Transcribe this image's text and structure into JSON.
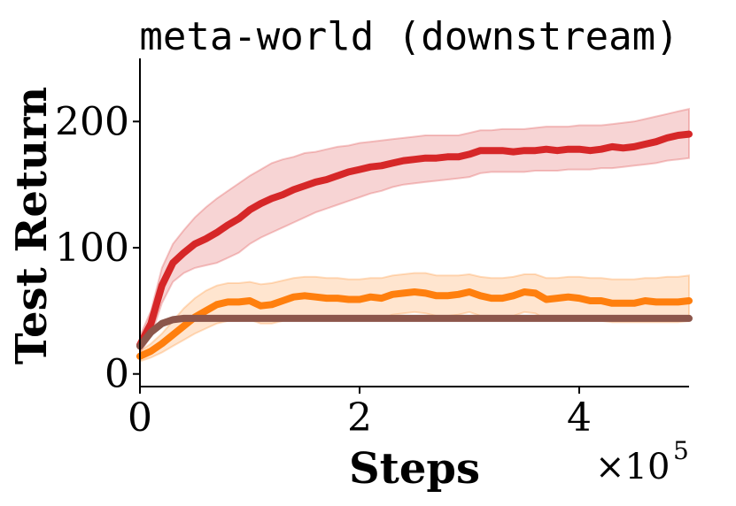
{
  "chart_data": {
    "type": "line",
    "title": "meta-world (downstream)",
    "xlabel": "Steps",
    "ylabel": "Test Return",
    "x_scale_text": "×10",
    "x_scale_exp": "5",
    "xlim": [
      0,
      500000
    ],
    "ylim": [
      -10,
      250
    ],
    "xticks": [
      0,
      200000,
      400000
    ],
    "xtick_labels": [
      "0",
      "2",
      "4"
    ],
    "yticks": [
      0,
      100,
      200
    ],
    "ytick_labels": [
      "0",
      "100",
      "200"
    ],
    "grid": false,
    "legend": "none",
    "series": [
      {
        "color": "#d62728",
        "x": [
          0,
          10000,
          20000,
          30000,
          40000,
          50000,
          60000,
          70000,
          80000,
          90000,
          100000,
          110000,
          120000,
          130000,
          140000,
          150000,
          160000,
          170000,
          180000,
          190000,
          200000,
          210000,
          220000,
          230000,
          240000,
          250000,
          260000,
          270000,
          280000,
          290000,
          300000,
          310000,
          320000,
          330000,
          340000,
          350000,
          360000,
          370000,
          380000,
          390000,
          400000,
          410000,
          420000,
          430000,
          440000,
          450000,
          460000,
          470000,
          480000,
          490000,
          500000
        ],
        "y": [
          23,
          40,
          70,
          88,
          96,
          103,
          107,
          112,
          118,
          123,
          130,
          135,
          139,
          142,
          146,
          149,
          152,
          154,
          157,
          160,
          162,
          164,
          165,
          167,
          169,
          170,
          171,
          171,
          172,
          172,
          174,
          177,
          177,
          177,
          176,
          177,
          177,
          178,
          177,
          178,
          178,
          177,
          178,
          180,
          179,
          180,
          182,
          184,
          187,
          189,
          190
        ],
        "upper": [
          30,
          50,
          84,
          103,
          114,
          124,
          132,
          139,
          145,
          151,
          157,
          162,
          167,
          170,
          172,
          175,
          176,
          178,
          180,
          181,
          183,
          184,
          185,
          186,
          187,
          188,
          189,
          189,
          189,
          189,
          191,
          193,
          193,
          194,
          194,
          194,
          195,
          196,
          196,
          196,
          197,
          197,
          197,
          198,
          199,
          200,
          202,
          204,
          206,
          208,
          210
        ],
        "lower": [
          17,
          30,
          56,
          73,
          80,
          84,
          86,
          88,
          92,
          96,
          103,
          108,
          112,
          116,
          120,
          124,
          128,
          131,
          134,
          137,
          140,
          143,
          145,
          148,
          150,
          151,
          152,
          153,
          154,
          155,
          156,
          159,
          160,
          160,
          160,
          160,
          161,
          161,
          161,
          162,
          162,
          162,
          163,
          163,
          164,
          165,
          166,
          167,
          169,
          170,
          171
        ]
      },
      {
        "color": "#ff7f0e",
        "x": [
          0,
          10000,
          20000,
          30000,
          40000,
          50000,
          60000,
          70000,
          80000,
          90000,
          100000,
          110000,
          120000,
          130000,
          140000,
          150000,
          160000,
          170000,
          180000,
          190000,
          200000,
          210000,
          220000,
          230000,
          240000,
          250000,
          260000,
          270000,
          280000,
          290000,
          300000,
          310000,
          320000,
          330000,
          340000,
          350000,
          360000,
          370000,
          380000,
          390000,
          400000,
          410000,
          420000,
          430000,
          440000,
          450000,
          460000,
          470000,
          480000,
          490000,
          500000
        ],
        "y": [
          14,
          18,
          24,
          31,
          38,
          45,
          50,
          55,
          57,
          57,
          58,
          54,
          55,
          58,
          61,
          62,
          61,
          60,
          60,
          59,
          59,
          61,
          60,
          63,
          64,
          65,
          64,
          62,
          62,
          63,
          65,
          62,
          60,
          60,
          62,
          65,
          64,
          59,
          60,
          61,
          60,
          58,
          58,
          56,
          56,
          56,
          58,
          57,
          57,
          57,
          58
        ],
        "upper": [
          18,
          24,
          32,
          42,
          52,
          60,
          66,
          70,
          72,
          72,
          73,
          71,
          72,
          74,
          76,
          77,
          77,
          76,
          76,
          75,
          75,
          76,
          76,
          78,
          79,
          80,
          80,
          78,
          78,
          78,
          79,
          77,
          76,
          76,
          77,
          79,
          79,
          76,
          76,
          77,
          77,
          76,
          76,
          75,
          75,
          75,
          76,
          76,
          77,
          77,
          78
        ],
        "lower": [
          10,
          13,
          17,
          22,
          27,
          32,
          36,
          40,
          42,
          42,
          43,
          40,
          40,
          42,
          45,
          46,
          45,
          44,
          44,
          43,
          43,
          45,
          44,
          47,
          48,
          49,
          48,
          46,
          46,
          47,
          49,
          46,
          44,
          44,
          46,
          49,
          48,
          43,
          44,
          45,
          44,
          42,
          42,
          41,
          41,
          41,
          41,
          41,
          41,
          41,
          42
        ]
      },
      {
        "color": "#8c564b",
        "x": [
          0,
          10000,
          20000,
          30000,
          40000,
          50000,
          60000,
          80000,
          100000,
          150000,
          200000,
          250000,
          300000,
          350000,
          400000,
          450000,
          500000
        ],
        "y": [
          22,
          33,
          40,
          43,
          44,
          44,
          44,
          44,
          44,
          44,
          44,
          44,
          44,
          44,
          44,
          44,
          44
        ]
      }
    ]
  }
}
